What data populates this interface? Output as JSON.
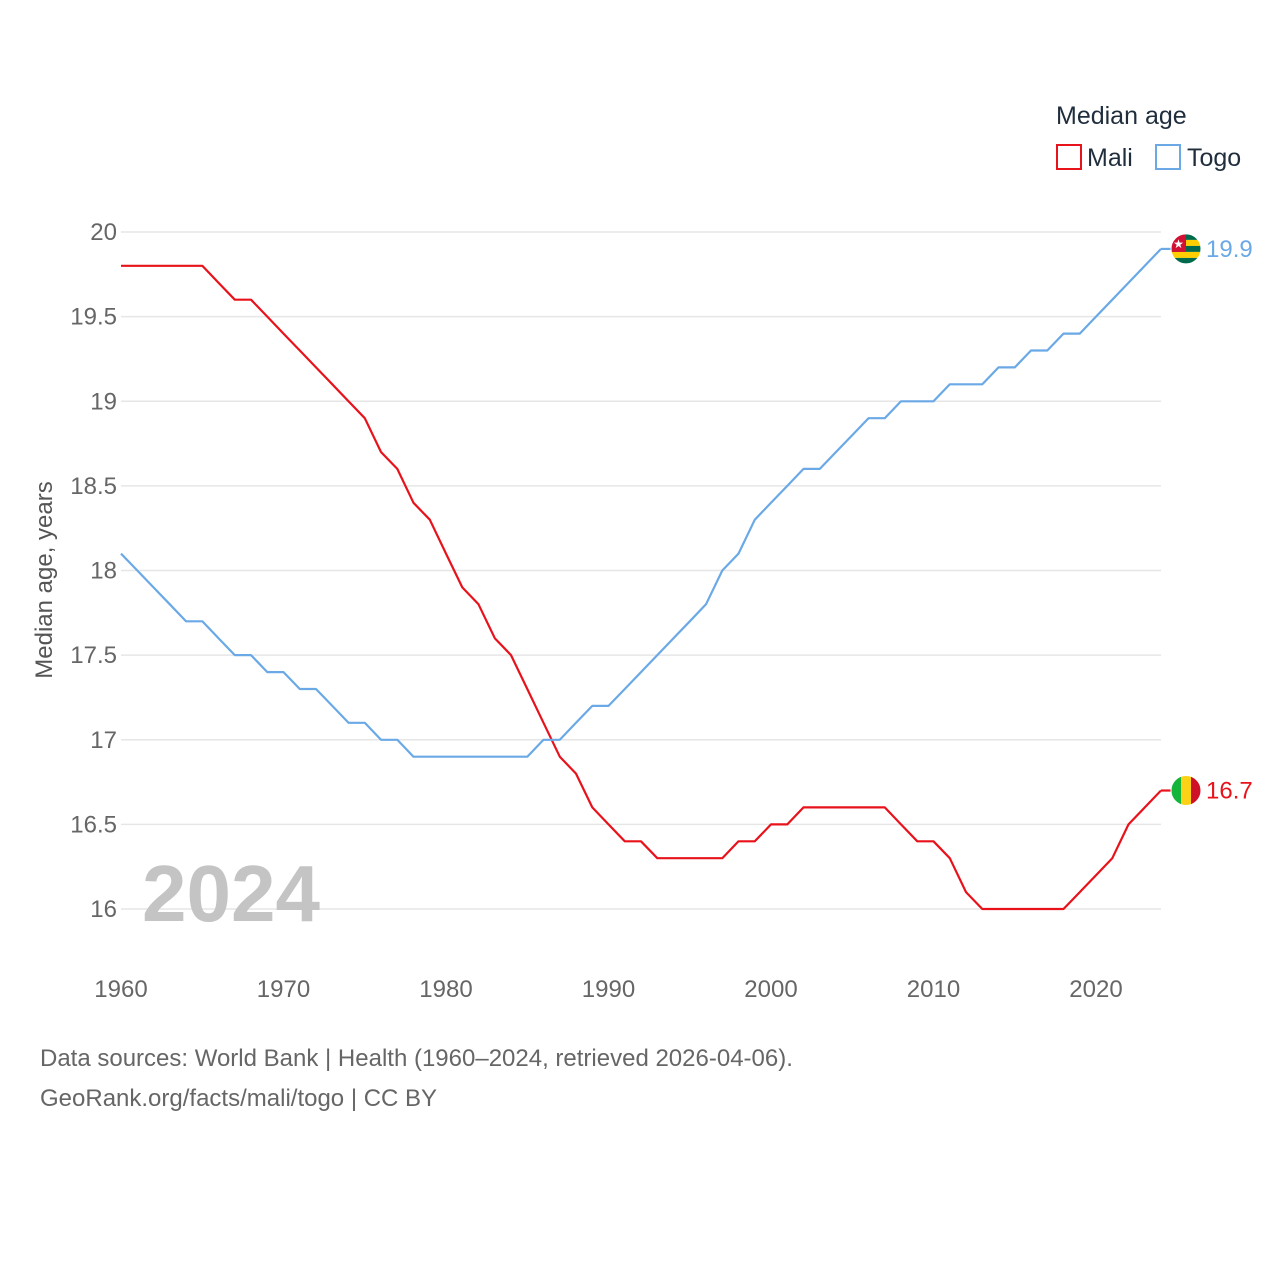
{
  "chart_data": {
    "type": "line",
    "ylabel": "Median age, years",
    "legend_title": "Median age",
    "current_year": "2024",
    "xlim": [
      1960,
      2024
    ],
    "ylim": [
      16,
      20
    ],
    "x_ticks": [
      1960,
      1970,
      1980,
      1990,
      2000,
      2010,
      2020
    ],
    "y_ticks": [
      16,
      16.5,
      17,
      17.5,
      18,
      18.5,
      19,
      19.5,
      20
    ],
    "x": [
      1960,
      1961,
      1962,
      1963,
      1964,
      1965,
      1966,
      1967,
      1968,
      1969,
      1970,
      1971,
      1972,
      1973,
      1974,
      1975,
      1976,
      1977,
      1978,
      1979,
      1980,
      1981,
      1982,
      1983,
      1984,
      1985,
      1986,
      1987,
      1988,
      1989,
      1990,
      1991,
      1992,
      1993,
      1994,
      1995,
      1996,
      1997,
      1998,
      1999,
      2000,
      2001,
      2002,
      2003,
      2004,
      2005,
      2006,
      2007,
      2008,
      2009,
      2010,
      2011,
      2012,
      2013,
      2014,
      2015,
      2016,
      2017,
      2018,
      2019,
      2020,
      2021,
      2022,
      2023,
      2024
    ],
    "series": [
      {
        "name": "Mali",
        "color": "#e8121b",
        "end_label": "16.7",
        "flag": "mali-flag",
        "values": [
          19.8,
          19.8,
          19.8,
          19.8,
          19.8,
          19.8,
          19.7,
          19.6,
          19.6,
          19.5,
          19.4,
          19.3,
          19.2,
          19.1,
          19.0,
          18.9,
          18.7,
          18.6,
          18.4,
          18.3,
          18.1,
          17.9,
          17.8,
          17.6,
          17.5,
          17.3,
          17.1,
          16.9,
          16.8,
          16.6,
          16.5,
          16.4,
          16.4,
          16.3,
          16.3,
          16.3,
          16.3,
          16.3,
          16.4,
          16.4,
          16.5,
          16.5,
          16.6,
          16.6,
          16.6,
          16.6,
          16.6,
          16.6,
          16.5,
          16.4,
          16.4,
          16.3,
          16.1,
          16.0,
          16.0,
          16.0,
          16.0,
          16.0,
          16.0,
          16.1,
          16.2,
          16.3,
          16.5,
          16.6,
          16.7
        ]
      },
      {
        "name": "Togo",
        "color": "#6aa9e6",
        "end_label": "19.9",
        "flag": "togo-flag",
        "values": [
          18.1,
          18.0,
          17.9,
          17.8,
          17.7,
          17.7,
          17.6,
          17.5,
          17.5,
          17.4,
          17.4,
          17.3,
          17.3,
          17.2,
          17.1,
          17.1,
          17.0,
          17.0,
          16.9,
          16.9,
          16.9,
          16.9,
          16.9,
          16.9,
          16.9,
          16.9,
          17.0,
          17.0,
          17.1,
          17.2,
          17.2,
          17.3,
          17.4,
          17.5,
          17.6,
          17.7,
          17.8,
          18.0,
          18.1,
          18.3,
          18.4,
          18.5,
          18.6,
          18.6,
          18.7,
          18.8,
          18.9,
          18.9,
          19.0,
          19.0,
          19.0,
          19.1,
          19.1,
          19.1,
          19.2,
          19.2,
          19.3,
          19.3,
          19.4,
          19.4,
          19.5,
          19.6,
          19.7,
          19.8,
          19.9
        ]
      }
    ]
  },
  "footer": {
    "source_line": "Data sources: World Bank | Health (1960–2024, retrieved 2026-04-06).",
    "credit_line": "GeoRank.org/facts/mali/togo | CC BY"
  }
}
